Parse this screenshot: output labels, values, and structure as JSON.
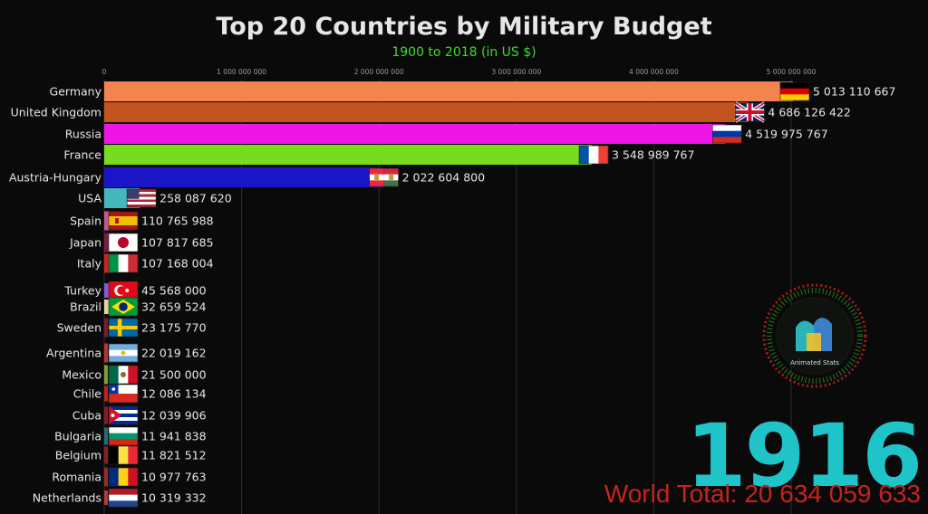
{
  "header": {
    "title": "Top 20 Countries by Military Budget",
    "subtitle": "1900 to 2018 (in US $)"
  },
  "overlay": {
    "year": "1916",
    "world_total": "World Total: 20 634 059 633",
    "logo_text": "Animated Stats"
  },
  "chart_data": {
    "type": "bar",
    "orientation": "horizontal",
    "title": "Top 20 Countries by Military Budget",
    "subtitle": "1900 to 2018 (in US $)",
    "xlim": [
      0,
      5200000000
    ],
    "xticks": [
      0,
      1000000000,
      2000000000,
      3000000000,
      4000000000,
      5000000000
    ],
    "xtick_labels": [
      "0",
      "1 000 000 000",
      "2 000 000 000",
      "3 000 000 000",
      "4 000 000 000",
      "5 000 000 000"
    ],
    "grid": true,
    "categories": [
      "Germany",
      "United Kingdom",
      "Russia",
      "France",
      "Austria-Hungary",
      "USA",
      "Spain",
      "Japan",
      "Italy",
      "Turkey",
      "Brazil",
      "Sweden",
      "Argentina",
      "Mexico",
      "Chile",
      "Cuba",
      "Bulgaria",
      "Belgium",
      "Romania",
      "Netherlands"
    ],
    "values": [
      5013110667,
      4686126422,
      4519975767,
      3548989767,
      2022604800,
      258087620,
      110765988,
      107817685,
      107168004,
      45568000,
      32659524,
      23175770,
      22019162,
      21500000,
      12086134,
      12039906,
      11941838,
      11821512,
      10977763,
      10319332
    ],
    "value_labels": [
      "5 013 110 667",
      "4 686 126 422",
      "4 519 975 767",
      "3 548 989 767",
      "2 022 604 800",
      "258 087 620",
      "110 765 988",
      "107 817 685",
      "107 168 004",
      "45 568 000",
      "32 659 524",
      "23 175 770",
      "22 019 162",
      "21 500 000",
      "12 086 134",
      "12 039 906",
      "11 941 838",
      "11 821 512",
      "10 977 763",
      "10 319 332"
    ],
    "colors": [
      "#f4844f",
      "#c2551f",
      "#ee16e6",
      "#77dc1f",
      "#1a16c8",
      "#44b7be",
      "#c05c8b",
      "#7a1d40",
      "#c62626",
      "#8d55d8",
      "#e6d59a",
      "#7e1a2a",
      "#b6342c",
      "#7c9d3a",
      "#b72720",
      "#8a1f22",
      "#1f6e7a",
      "#8a2222",
      "#9a2b2b",
      "#b73a3a"
    ],
    "flags": [
      "germany-flag",
      "uk-flag",
      "russia-flag",
      "france-flag",
      "austria-hungary-flag",
      "usa-flag",
      "spain-flag",
      "japan-flag",
      "italy-flag",
      "turkey-flag",
      "brazil-flag",
      "sweden-flag",
      "argentina-flag",
      "mexico-flag",
      "chile-flag",
      "cuba-flag",
      "bulgaria-flag",
      "belgium-flag",
      "romania-flag",
      "netherlands-flag"
    ]
  }
}
